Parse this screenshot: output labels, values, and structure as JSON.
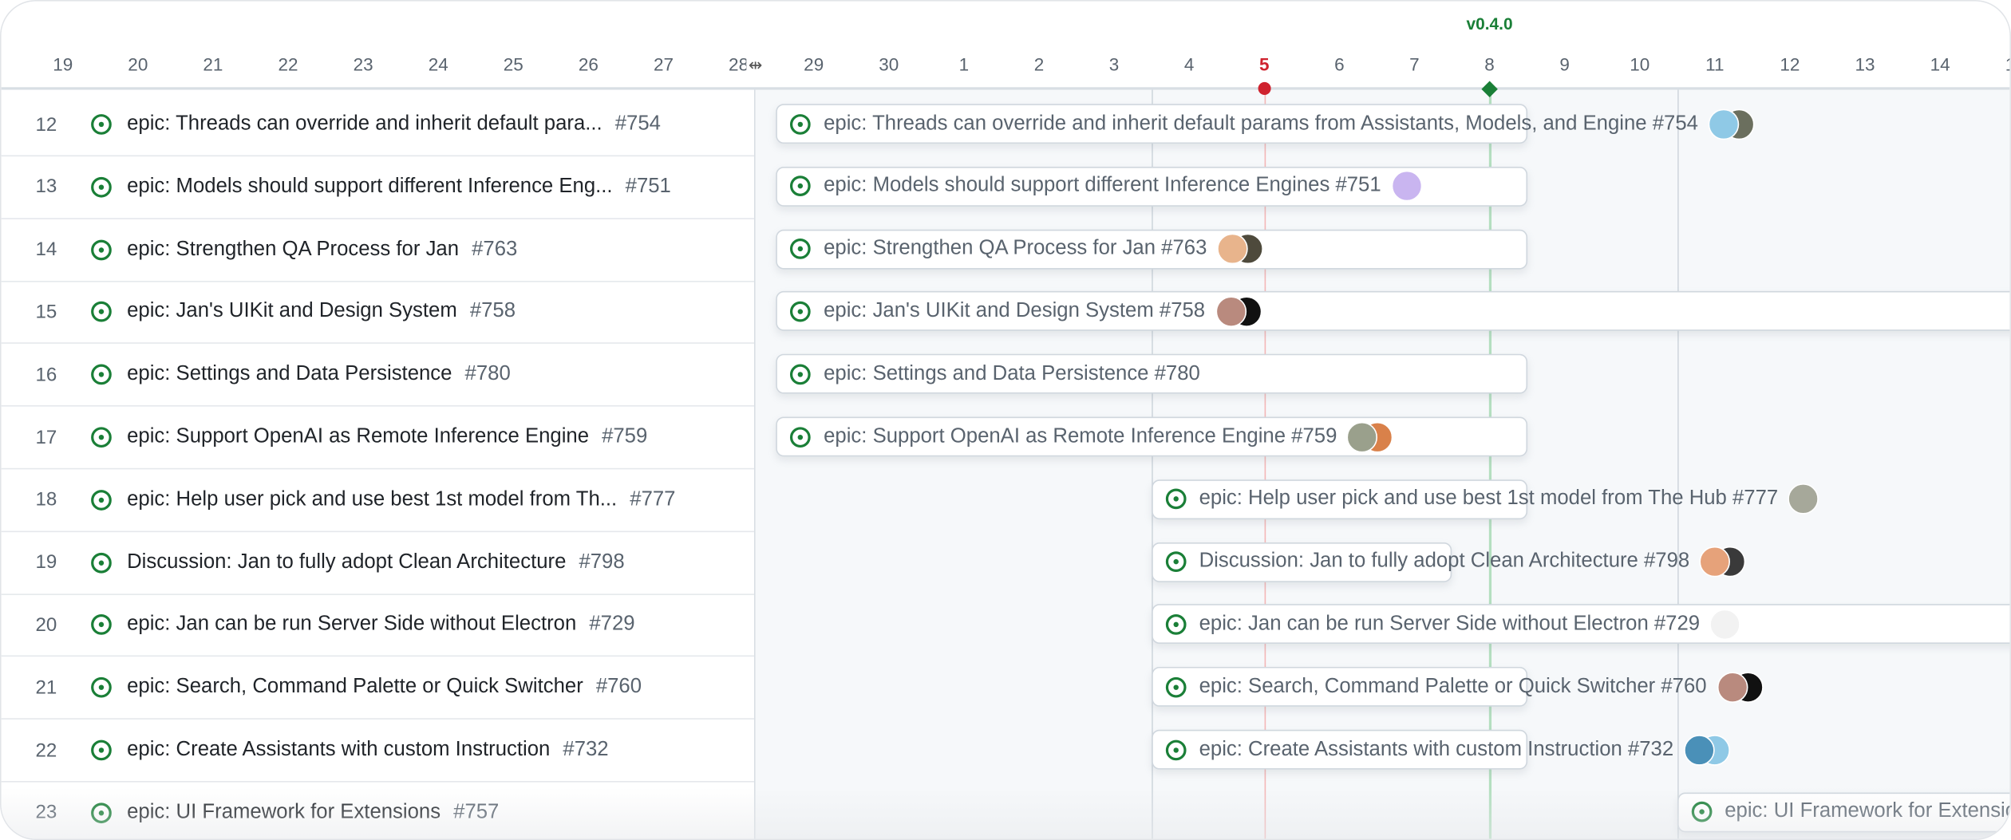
{
  "timeline": {
    "dates": [
      "19",
      "20",
      "21",
      "22",
      "23",
      "24",
      "25",
      "26",
      "27",
      "28",
      "29",
      "30",
      "1",
      "2",
      "3",
      "4",
      "5",
      "6",
      "7",
      "8",
      "9",
      "10",
      "11",
      "12",
      "13",
      "14",
      "15"
    ],
    "today": "5",
    "milestone": {
      "label": "v0.4.0",
      "date": "8",
      "color": "#1a7f37"
    },
    "today_color": "#cf222e",
    "week_lines": [
      "4",
      "11"
    ]
  },
  "rows": [
    {
      "n": "12",
      "title": "epic: Threads can override and inherit default params from Assistants, Models, and Engine",
      "short": "epic: Threads can override and inherit default para...",
      "num": "#754",
      "start": "29",
      "end": "8",
      "avatars": [
        "#8fc9e6",
        "#6b6f5e"
      ]
    },
    {
      "n": "13",
      "title": "epic: Models should support different Inference Engines",
      "short": "epic: Models should support different Inference Eng...",
      "num": "#751",
      "start": "29",
      "end": "8",
      "avatars": [
        "#c9b5f0"
      ]
    },
    {
      "n": "14",
      "title": "epic: Strengthen QA Process for Jan",
      "short": "epic: Strengthen QA Process for Jan",
      "num": "#763",
      "start": "29",
      "end": "8",
      "avatars": [
        "#e8b48c",
        "#4e4a3c"
      ]
    },
    {
      "n": "15",
      "title": "epic: Jan's UIKit and Design System",
      "short": "epic: Jan's UIKit and Design System",
      "num": "#758",
      "start": "29",
      "end": null,
      "avatars": [
        "#b98a7e",
        "#111111"
      ]
    },
    {
      "n": "16",
      "title": "epic: Settings and Data Persistence",
      "short": "epic: Settings and Data Persistence",
      "num": "#780",
      "start": "29",
      "end": "8",
      "avatars": []
    },
    {
      "n": "17",
      "title": "epic: Support OpenAI as Remote Inference Engine",
      "short": "epic: Support OpenAI as Remote Inference Engine",
      "num": "#759",
      "start": "29",
      "end": "8",
      "avatars": [
        "#9aa08c",
        "#d9814a"
      ]
    },
    {
      "n": "18",
      "title": "epic: Help user pick and use best 1st model from The Hub",
      "short": "epic: Help user pick and use best 1st model from Th...",
      "num": "#777",
      "start": "4",
      "end": "8",
      "avatars": [
        "#a6a89a"
      ]
    },
    {
      "n": "19",
      "title": "Discussion: Jan to fully adopt Clean Architecture",
      "short": "Discussion: Jan to fully adopt Clean Architecture",
      "num": "#798",
      "start": "4",
      "end": "7",
      "avatars": [
        "#e6a27a",
        "#3a3a3a"
      ]
    },
    {
      "n": "20",
      "title": "epic: Jan can be run Server Side without Electron",
      "short": "epic: Jan can be run Server Side without Electron",
      "num": "#729",
      "start": "4",
      "end": null,
      "avatars": [
        "#f2f2f2"
      ]
    },
    {
      "n": "21",
      "title": "epic: Search, Command Palette or Quick Switcher",
      "short": "epic: Search, Command Palette or Quick Switcher",
      "num": "#760",
      "start": "4",
      "end": "8",
      "avatars": [
        "#b98a7e",
        "#111111"
      ]
    },
    {
      "n": "22",
      "title": "epic: Create Assistants with custom Instruction",
      "short": "epic: Create Assistants with custom Instruction",
      "num": "#732",
      "start": "4",
      "end": "8",
      "avatars": [
        "#4a90b8",
        "#8fc9e6"
      ]
    },
    {
      "n": "23",
      "title": "epic: UI Framework for Extensions",
      "short": "epic: UI Framework for Extensions",
      "num": "#757",
      "start": "11",
      "end": null,
      "avatars": []
    }
  ]
}
